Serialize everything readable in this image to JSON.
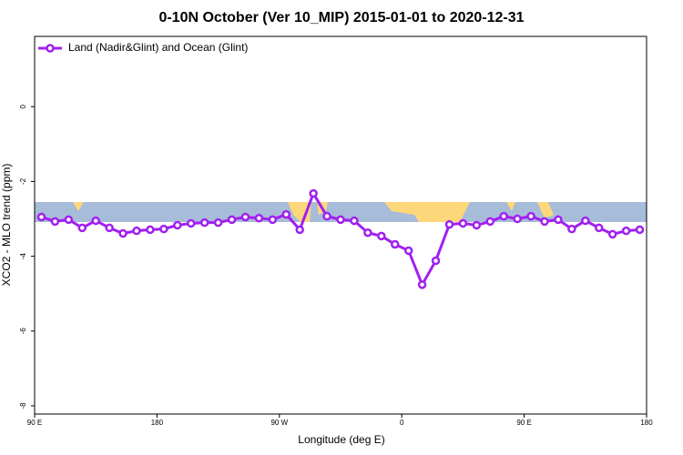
{
  "chart_data": {
    "type": "line",
    "title": "0-10N October (Ver 10_MIP)   2015-01-01 to 2020-12-31",
    "x_label": "Longitude (deg E)",
    "y_label": "XCO2 - MLO trend (ppm)",
    "x": [
      95,
      105,
      115,
      125,
      135,
      145,
      155,
      165,
      175,
      185,
      195,
      205,
      215,
      225,
      235,
      245,
      255,
      265,
      275,
      285,
      295,
      305,
      315,
      325,
      335,
      345,
      355,
      365,
      375,
      385,
      395,
      405,
      415,
      425,
      435,
      445,
      455,
      465,
      475,
      485,
      495,
      505,
      515,
      525,
      535
    ],
    "series": [
      {
        "name": "Land (Nadir&Glint) and Ocean (Glint)",
        "color": "#a020f0",
        "values": [
          -2.95,
          -3.07,
          -3.02,
          -3.24,
          -3.05,
          -3.24,
          -3.39,
          -3.32,
          -3.29,
          -3.27,
          -3.17,
          -3.12,
          -3.1,
          -3.1,
          -3.02,
          -2.95,
          -2.98,
          -3.02,
          -2.88,
          -3.29,
          -2.32,
          -2.93,
          -3.02,
          -3.05,
          -3.37,
          -3.46,
          -3.68,
          -3.85,
          -4.76,
          -4.12,
          -3.15,
          -3.12,
          -3.17,
          -3.07,
          -2.93,
          -3.0,
          -2.93,
          -3.07,
          -3.02,
          -3.27,
          -3.05,
          -3.24,
          -3.41,
          -3.32,
          -3.29
        ]
      }
    ],
    "xlim": [
      90,
      540
    ],
    "xticks": [
      {
        "value": 90,
        "label": "90 E"
      },
      180,
      {
        "value": 270,
        "label": "90 W"
      },
      {
        "value": 360,
        "label": "0"
      },
      {
        "value": 450,
        "label": "90 E"
      },
      {
        "value": 540,
        "label": "180"
      }
    ],
    "ylim": [
      -8.22,
      1.88
    ],
    "yticks": [
      -8,
      -6,
      -4,
      -2,
      0
    ],
    "legend": "top-left"
  }
}
